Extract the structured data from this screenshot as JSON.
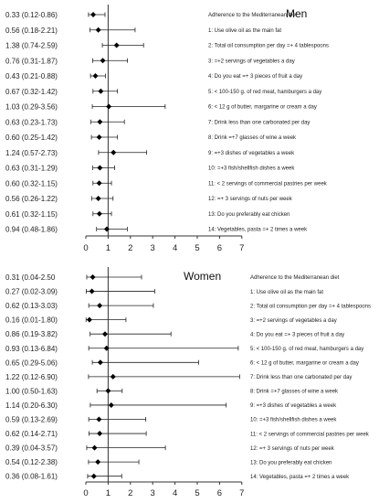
{
  "chart_data": [
    {
      "type": "forest",
      "title": "Men",
      "xlim": [
        0,
        7
      ],
      "xticks": [
        "0",
        "1",
        "2",
        "3",
        "4",
        "5",
        "6",
        "7"
      ],
      "reference_line": 1,
      "rows": [
        {
          "label": "Adherence to the Mediterranean diet",
          "or_text": "0.33 (0.12-0.86)",
          "or": 0.33,
          "lo": 0.12,
          "hi": 0.86
        },
        {
          "label": "1: Use olive oil as the main fat",
          "or_text": "0.56 (0.18-2.21)",
          "or": 0.56,
          "lo": 0.18,
          "hi": 2.21
        },
        {
          "label": "2: Total oil consumption per day =+ 4 tablespoons",
          "or_text": "1.38 (0.74-2.59)",
          "or": 1.38,
          "lo": 0.74,
          "hi": 2.59
        },
        {
          "label": "3: =+2 servings of vegetables a day",
          "or_text": "0.76 (0.31-1.87)",
          "or": 0.76,
          "lo": 0.31,
          "hi": 1.87
        },
        {
          "label": "4: Do you eat =+ 3 pieces of fruit a day",
          "or_text": "0.43 (0.21-0.88)",
          "or": 0.43,
          "lo": 0.21,
          "hi": 0.88
        },
        {
          "label": "5: < 100-150 g. of red meat, hamburgers a day",
          "or_text": "0.67 (0.32-1.42)",
          "or": 0.67,
          "lo": 0.32,
          "hi": 1.42
        },
        {
          "label": "6: < 12 g of butter, margarine or cream a day",
          "or_text": "1.03 (0.29-3.56)",
          "or": 1.03,
          "lo": 0.29,
          "hi": 3.56
        },
        {
          "label": "7: Drink less than one carbonated per day",
          "or_text": "0.63 (0.23-1.73)",
          "or": 0.63,
          "lo": 0.23,
          "hi": 1.73
        },
        {
          "label": "8: Drink =+7 glasses of wine a week",
          "or_text": "0.60 (0.25-1.42)",
          "or": 0.6,
          "lo": 0.25,
          "hi": 1.42
        },
        {
          "label": "9: =+3 dishes of vegetables a week",
          "or_text": "1.24 (0.57-2.73)",
          "or": 1.24,
          "lo": 0.57,
          "hi": 2.73
        },
        {
          "label": "10: =+3 fish/shellfish dishes a week",
          "or_text": "0.63 (0.31-1.29)",
          "or": 0.63,
          "lo": 0.31,
          "hi": 1.29
        },
        {
          "label": "11: < 2 servings of commercial pastries per week",
          "or_text": "0.60 (0.32-1.15)",
          "or": 0.6,
          "lo": 0.32,
          "hi": 1.15
        },
        {
          "label": "12: =+ 3 servings of nuts per week",
          "or_text": "0.56 (0.26-1.22)",
          "or": 0.56,
          "lo": 0.26,
          "hi": 1.22
        },
        {
          "label": "13: Do you preferably eat chicken",
          "or_text": "0.61 (0.32-1.15)",
          "or": 0.61,
          "lo": 0.32,
          "hi": 1.15
        },
        {
          "label": "14: Vegetables, pasta =+ 2 times a week",
          "or_text": "0.94 (0.48-1.86)",
          "or": 0.94,
          "lo": 0.48,
          "hi": 1.86
        }
      ]
    },
    {
      "type": "forest",
      "title": "Women",
      "xlim": [
        0,
        7
      ],
      "xticks": [
        "0",
        "1",
        "2",
        "3",
        "4",
        "5",
        "6",
        "7"
      ],
      "reference_line": 1,
      "rows": [
        {
          "label": "Adherence to the Mediterranean diet",
          "or_text": "0.31 (0.04-2.50",
          "or": 0.31,
          "lo": 0.04,
          "hi": 2.5
        },
        {
          "label": "1: Use olive oil as the main fat",
          "or_text": "0.27 (0.02-3.09)",
          "or": 0.27,
          "lo": 0.02,
          "hi": 3.09
        },
        {
          "label": "2: Total oil consumption per day =+ 4 tablespoons",
          "or_text": "0.62 (0.13-3.03)",
          "or": 0.62,
          "lo": 0.13,
          "hi": 3.03
        },
        {
          "label": "3: =+2 servings of vegetables a day",
          "or_text": "0.16 (0.01-1.80)",
          "or": 0.16,
          "lo": 0.01,
          "hi": 1.8
        },
        {
          "label": "4: Do you eat =+ 3 pieces of fruit a day",
          "or_text": "0.86 (0.19-3.82)",
          "or": 0.86,
          "lo": 0.19,
          "hi": 3.82
        },
        {
          "label": "5: < 100-150 g. of red meat, hamburgers a day",
          "or_text": "0.93 (0.13-6.84)",
          "or": 0.93,
          "lo": 0.13,
          "hi": 6.84
        },
        {
          "label": "6: < 12 g of butter, margarine or cream a day",
          "or_text": "0.65 (0.29-5.06)",
          "or": 0.65,
          "lo": 0.29,
          "hi": 5.06
        },
        {
          "label": "7: Drink less than one carbonated per day",
          "or_text": "1.22 (0.12-6.90)",
          "or": 1.22,
          "lo": 0.12,
          "hi": 6.9
        },
        {
          "label": "8: Drink =+7 glasses of wine a week",
          "or_text": "1.00 (0.50-1.63)",
          "or": 1.0,
          "lo": 0.5,
          "hi": 1.63
        },
        {
          "label": "9: =+3 dishes of vegetables a week",
          "or_text": "1.14 (0.20-6.30)",
          "or": 1.14,
          "lo": 0.2,
          "hi": 6.3
        },
        {
          "label": "10: =+3 fish/shellfish dishes a week",
          "or_text": "0.59 (0.13-2.69)",
          "or": 0.59,
          "lo": 0.13,
          "hi": 2.69
        },
        {
          "label": "11: < 2 servings of commercial pastries per week",
          "or_text": "0.62 (0.14-2.71)",
          "or": 0.62,
          "lo": 0.14,
          "hi": 2.71
        },
        {
          "label": "12: =+ 3 servings of nuts per week",
          "or_text": "0.39 (0.04-3.57)",
          "or": 0.39,
          "lo": 0.04,
          "hi": 3.57
        },
        {
          "label": "13: Do you preferably eat chicken",
          "or_text": "0.54 (0.12-2.38)",
          "or": 0.54,
          "lo": 0.12,
          "hi": 2.38
        },
        {
          "label": "14: Vegetables, pasta =+ 2 times a week",
          "or_text": "0.36 (0.08-1.61)",
          "or": 0.36,
          "lo": 0.08,
          "hi": 1.61
        }
      ]
    }
  ]
}
